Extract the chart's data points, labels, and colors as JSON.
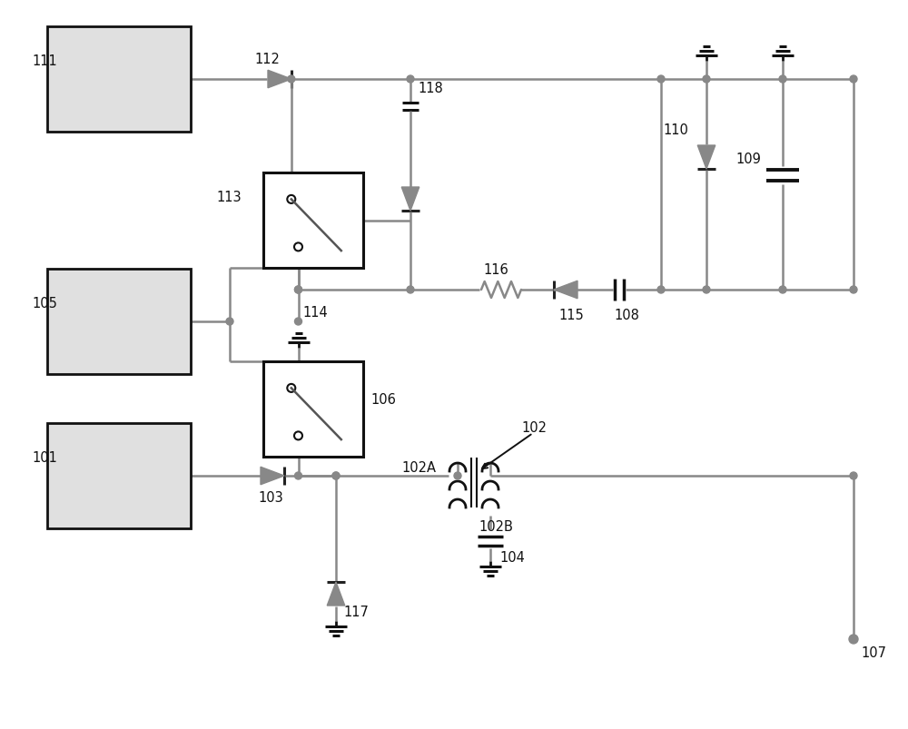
{
  "bg_color": "#ffffff",
  "line_color": "#888888",
  "line_width": 1.8,
  "component_color": "#888888",
  "label_color": "#111111",
  "label_fontsize": 10.5,
  "fig_width": 10.0,
  "fig_height": 8.04
}
